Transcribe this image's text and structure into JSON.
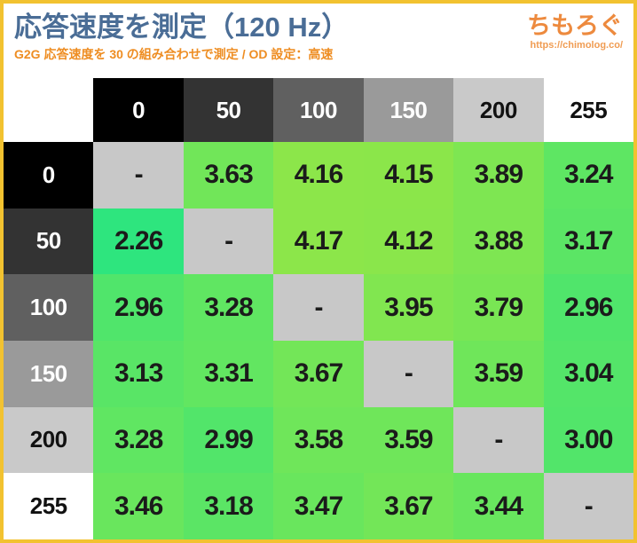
{
  "page": {
    "title": "応答速度を測定（120 Hz）",
    "subtitle": "G2G 応答速度を 30 の組み合わせで測定 / OD 設定：高速"
  },
  "logo": {
    "brand": "ちもろぐ",
    "url": "https://chimolog.co/"
  },
  "colors": {
    "frame": "#f2c230",
    "title": "#4a6d96",
    "subtitle": "#ee8d22",
    "brand": "#ed8a3e",
    "brand_url": "#f09c52",
    "diagonal_cell": "#c8c8c8",
    "scale_low_value": "#2ee57e",
    "scale_high_value": "#8ce64a",
    "cell_text": "#1b1b1b"
  },
  "table": {
    "corner_label": "",
    "columns": [
      {
        "label": "0",
        "bg": "#000000",
        "fg": "#ffffff"
      },
      {
        "label": "50",
        "bg": "#333333",
        "fg": "#ffffff"
      },
      {
        "label": "100",
        "bg": "#606060",
        "fg": "#ffffff"
      },
      {
        "label": "150",
        "bg": "#9a9a9a",
        "fg": "#ffffff"
      },
      {
        "label": "200",
        "bg": "#c9c9c9",
        "fg": "#111111"
      },
      {
        "label": "255",
        "bg": "#ffffff",
        "fg": "#111111"
      }
    ],
    "rows": [
      {
        "label": "0",
        "bg": "#000000",
        "fg": "#ffffff",
        "cells": [
          {
            "text": "-",
            "bg": "#c8c8c8"
          },
          {
            "text": "3.63",
            "bg": "#71e659"
          },
          {
            "text": "4.16",
            "bg": "#8ce64a"
          },
          {
            "text": "4.15",
            "bg": "#8be64a"
          },
          {
            "text": "3.89",
            "bg": "#7ee652"
          },
          {
            "text": "3.24",
            "bg": "#5ee663"
          }
        ]
      },
      {
        "label": "50",
        "bg": "#333333",
        "fg": "#ffffff",
        "cells": [
          {
            "text": "2.26",
            "bg": "#2ee57e"
          },
          {
            "text": "-",
            "bg": "#c8c8c8"
          },
          {
            "text": "4.17",
            "bg": "#8ce64a"
          },
          {
            "text": "4.12",
            "bg": "#8ae64b"
          },
          {
            "text": "3.88",
            "bg": "#7ee652"
          },
          {
            "text": "3.17",
            "bg": "#5be565"
          }
        ]
      },
      {
        "label": "100",
        "bg": "#606060",
        "fg": "#ffffff",
        "cells": [
          {
            "text": "2.96",
            "bg": "#50e56b"
          },
          {
            "text": "3.28",
            "bg": "#60e662"
          },
          {
            "text": "-",
            "bg": "#c8c8c8"
          },
          {
            "text": "3.95",
            "bg": "#81e650"
          },
          {
            "text": "3.79",
            "bg": "#79e654"
          },
          {
            "text": "2.96",
            "bg": "#50e56b"
          }
        ]
      },
      {
        "label": "150",
        "bg": "#9a9a9a",
        "fg": "#ffffff",
        "cells": [
          {
            "text": "3.13",
            "bg": "#59e566"
          },
          {
            "text": "3.31",
            "bg": "#62e661"
          },
          {
            "text": "3.67",
            "bg": "#73e658"
          },
          {
            "text": "-",
            "bg": "#c8c8c8"
          },
          {
            "text": "3.59",
            "bg": "#6fe65a"
          },
          {
            "text": "3.04",
            "bg": "#54e569"
          }
        ]
      },
      {
        "label": "200",
        "bg": "#c9c9c9",
        "fg": "#111111",
        "cells": [
          {
            "text": "3.28",
            "bg": "#60e662"
          },
          {
            "text": "2.99",
            "bg": "#52e56a"
          },
          {
            "text": "3.58",
            "bg": "#6fe65a"
          },
          {
            "text": "3.59",
            "bg": "#6fe65a"
          },
          {
            "text": "-",
            "bg": "#c8c8c8"
          },
          {
            "text": "3.00",
            "bg": "#52e56a"
          }
        ]
      },
      {
        "label": "255",
        "bg": "#ffffff",
        "fg": "#111111",
        "cells": [
          {
            "text": "3.46",
            "bg": "#69e65d"
          },
          {
            "text": "3.18",
            "bg": "#5be565"
          },
          {
            "text": "3.47",
            "bg": "#69e65d"
          },
          {
            "text": "3.67",
            "bg": "#73e658"
          },
          {
            "text": "3.44",
            "bg": "#68e65e"
          },
          {
            "text": "-",
            "bg": "#c8c8c8"
          }
        ]
      }
    ]
  },
  "chart_data": {
    "type": "heatmap",
    "title": "応答速度を測定（120 Hz）",
    "subtitle": "G2G 応答速度を 30 の組み合わせで測定 / OD 設定：高速",
    "x_categories": [
      "0",
      "50",
      "100",
      "150",
      "200",
      "255"
    ],
    "y_categories": [
      "0",
      "50",
      "100",
      "150",
      "200",
      "255"
    ],
    "values": [
      [
        null,
        3.63,
        4.16,
        4.15,
        3.89,
        3.24
      ],
      [
        2.26,
        null,
        4.17,
        4.12,
        3.88,
        3.17
      ],
      [
        2.96,
        3.28,
        null,
        3.95,
        3.79,
        2.96
      ],
      [
        3.13,
        3.31,
        3.67,
        null,
        3.59,
        3.04
      ],
      [
        3.28,
        2.99,
        3.58,
        3.59,
        null,
        3.0
      ],
      [
        3.46,
        3.18,
        3.47,
        3.67,
        3.44,
        null
      ]
    ],
    "value_range": [
      2.26,
      4.17
    ],
    "diagonal_marker": "-",
    "color_scale": {
      "low": "#2ee57e",
      "high": "#8ce64a"
    },
    "legend": "none",
    "grid": "off"
  }
}
